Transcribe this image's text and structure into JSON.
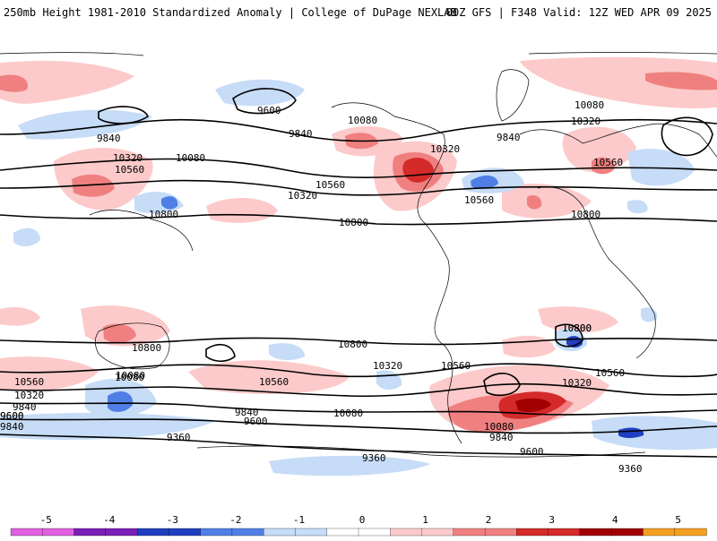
{
  "header": {
    "title_left": "250mb Height 1981-2010 Standardized Anomaly | College of DuPage NEXLAB",
    "title_right": "00Z GFS | F348 Valid: 12Z WED APR 09 2025"
  },
  "colors": {
    "neg5": "#e060e0",
    "neg4": "#7a1fb8",
    "neg3": "#1f3fc0",
    "neg2": "#4f7fe6",
    "neg1": "#c6dcf7",
    "zero": "#ffffff",
    "pos1": "#fccaca",
    "pos2": "#f08080",
    "pos3": "#d42a2a",
    "pos4": "#a00000",
    "pos5": "#f5a020",
    "contour": "#000000",
    "coast": "#000000"
  },
  "colorbar": {
    "ticks": [
      "-5",
      "-4",
      "-3",
      "-2",
      "-1",
      "0",
      "1",
      "2",
      "3",
      "4",
      "5"
    ]
  },
  "contour_labels": [
    "9600",
    "9840",
    "9840",
    "10080",
    "10320",
    "10560",
    "10800",
    "10320",
    "10560",
    "10800",
    "10080",
    "10320",
    "9840",
    "10080",
    "10320",
    "10560",
    "10560",
    "10800",
    "10800",
    "10800",
    "10800",
    "10560",
    "10320",
    "9840",
    "9600",
    "10080",
    "10560",
    "10320",
    "10080",
    "10560",
    "10800",
    "10560",
    "10320",
    "9840",
    "9600",
    "9840",
    "9600",
    "10080",
    "9360",
    "10080",
    "9840",
    "9600",
    "9360",
    "9360"
  ]
}
